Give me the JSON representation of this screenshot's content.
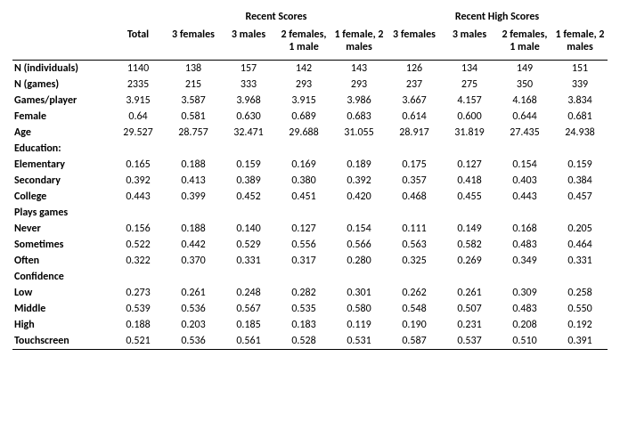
{
  "table": {
    "background_color": "#ffffff",
    "text_color": "#000000",
    "fontsize": 12,
    "group_headers": {
      "total": "Total",
      "recent_scores": "Recent Scores",
      "recent_high_scores": "Recent High Scores"
    },
    "sub_headers": {
      "g3f": "3 females",
      "g3m": "3 males",
      "g2f1m": "2 females, 1 male",
      "g1f2m": "1 female, 2 males"
    },
    "row_labels": {
      "n_ind": "N (individuals)",
      "n_games": "N (games)",
      "games_player": "Games/player",
      "female": "Female",
      "age": "Age",
      "education": "Education:",
      "elementary": "Elementary",
      "secondary": "Secondary",
      "college": "College",
      "plays_games": "Plays games",
      "never": "Never",
      "sometimes": "Sometimes",
      "often": "Often",
      "confidence": "Confidence",
      "low": "Low",
      "middle": "Middle",
      "high": "High",
      "touchscreen": "Touchscreen"
    },
    "rows": {
      "n_ind": [
        "1140",
        "138",
        "157",
        "142",
        "143",
        "126",
        "134",
        "149",
        "151"
      ],
      "n_games": [
        "2335",
        "215",
        "333",
        "293",
        "293",
        "237",
        "275",
        "350",
        "339"
      ],
      "games_player": [
        "3.915",
        "3.587",
        "3.968",
        "3.915",
        "3.986",
        "3.667",
        "4.157",
        "4.168",
        "3.834"
      ],
      "female": [
        "0.64",
        "0.581",
        "0.630",
        "0.689",
        "0.683",
        "0.614",
        "0.600",
        "0.644",
        "0.681"
      ],
      "age": [
        "29.527",
        "28.757",
        "32.471",
        "29.688",
        "31.055",
        "28.917",
        "31.819",
        "27.435",
        "24.938"
      ],
      "elementary": [
        "0.165",
        "0.188",
        "0.159",
        "0.169",
        "0.189",
        "0.175",
        "0.127",
        "0.154",
        "0.159"
      ],
      "secondary": [
        "0.392",
        "0.413",
        "0.389",
        "0.380",
        "0.392",
        "0.357",
        "0.418",
        "0.403",
        "0.384"
      ],
      "college": [
        "0.443",
        "0.399",
        "0.452",
        "0.451",
        "0.420",
        "0.468",
        "0.455",
        "0.443",
        "0.457"
      ],
      "never": [
        "0.156",
        "0.188",
        "0.140",
        "0.127",
        "0.154",
        "0.111",
        "0.149",
        "0.168",
        "0.205"
      ],
      "sometimes": [
        "0.522",
        "0.442",
        "0.529",
        "0.556",
        "0.566",
        "0.563",
        "0.582",
        "0.483",
        "0.464"
      ],
      "often": [
        "0.322",
        "0.370",
        "0.331",
        "0.317",
        "0.280",
        "0.325",
        "0.269",
        "0.349",
        "0.331"
      ],
      "low": [
        "0.273",
        "0.261",
        "0.248",
        "0.282",
        "0.301",
        "0.262",
        "0.261",
        "0.309",
        "0.258"
      ],
      "middle": [
        "0.539",
        "0.536",
        "0.567",
        "0.535",
        "0.580",
        "0.548",
        "0.507",
        "0.483",
        "0.550"
      ],
      "high": [
        "0.188",
        "0.203",
        "0.185",
        "0.183",
        "0.119",
        "0.190",
        "0.231",
        "0.208",
        "0.192"
      ],
      "touchscreen": [
        "0.521",
        "0.536",
        "0.561",
        "0.528",
        "0.531",
        "0.587",
        "0.537",
        "0.510",
        "0.391"
      ]
    }
  }
}
